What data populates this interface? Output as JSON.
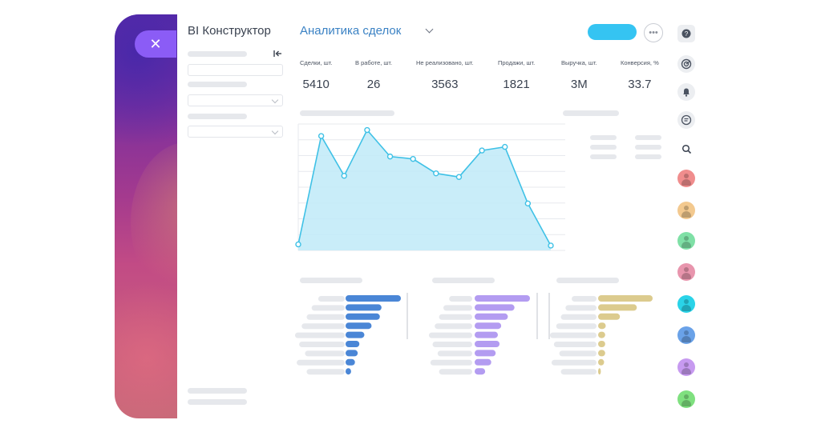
{
  "header": {
    "app_title": "BI Конструктор",
    "report_title": "Аналитика сделок",
    "close_glyph": "✕",
    "more_glyph": "•••"
  },
  "kpis": [
    {
      "label": "Сделки, шт.",
      "value": "5410"
    },
    {
      "label": "В работе, шт.",
      "value": "26"
    },
    {
      "label": "Не реализовано, шт.",
      "value": "3563"
    },
    {
      "label": "Продажи, шт.",
      "value": "1821"
    },
    {
      "label": "Выручка, шт.",
      "value": "3M"
    },
    {
      "label": "Конверсия, %",
      "value": "33.7"
    }
  ],
  "colors": {
    "accent": "#35c4f2",
    "link": "#3b82c4",
    "close_button": "#8b5cf6",
    "area_fill": "#bfeaf8",
    "area_line": "#3fc1e6",
    "bar_blue": "#4a86d6",
    "bar_purple": "#b39cf1",
    "bar_gold": "#dccb8e"
  },
  "icons": {
    "rail": [
      "help-icon",
      "radar-icon",
      "bell-icon",
      "chat-icon",
      "search-icon"
    ],
    "avatars": [
      "#f08d8d",
      "#f3c98f",
      "#7fe0a6",
      "#e895ad",
      "#2ad3e8",
      "#6aa2e8",
      "#c79af0",
      "#7fe07f"
    ]
  },
  "chart_data": [
    {
      "type": "area",
      "x": [
        1,
        2,
        3,
        4,
        5,
        6,
        7,
        8,
        9,
        10,
        11,
        12
      ],
      "values": [
        5,
        95,
        62,
        100,
        78,
        76,
        64,
        61,
        83,
        86,
        39,
        4
      ],
      "ylim": [
        0,
        105
      ],
      "grid": true,
      "xlabel": "",
      "ylabel": "",
      "title": ""
    },
    {
      "type": "bar",
      "orientation": "horizontal",
      "values": [
        100,
        65,
        62,
        47,
        34,
        25,
        22,
        17,
        10
      ],
      "xlim": [
        0,
        100
      ]
    },
    {
      "type": "bar",
      "orientation": "horizontal",
      "values": [
        100,
        72,
        60,
        48,
        42,
        45,
        38,
        30,
        19
      ],
      "xlim": [
        0,
        100
      ]
    },
    {
      "type": "bar",
      "orientation": "horizontal",
      "values": [
        100,
        71,
        40,
        14,
        13,
        13,
        13,
        11,
        5
      ],
      "xlim": [
        0,
        100
      ]
    }
  ]
}
